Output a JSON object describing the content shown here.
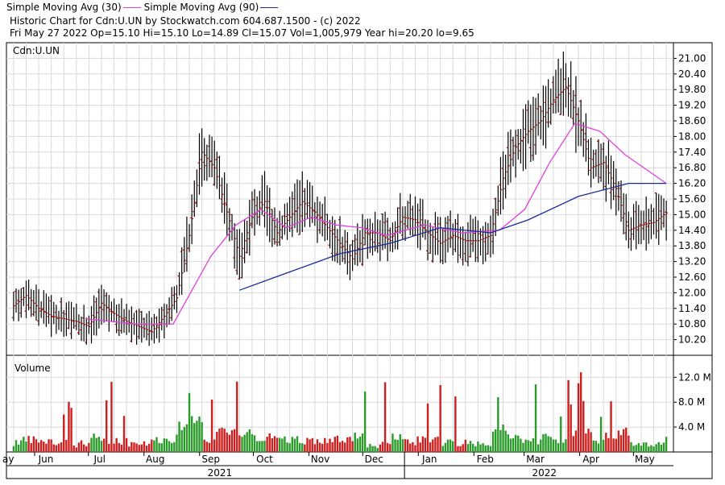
{
  "legend": {
    "ma30_label": "Simple Moving Avg (30)",
    "ma90_label": "Simple Moving Avg (90)"
  },
  "header": {
    "line1": "Historic Chart for Cdn:U.UN by Stockwatch.com 604.687.1500 - (c) 2022",
    "line2": "Fri May 27 2022  Op=15.10  Hi=15.10  Lo=14.89  Cl=15.07  Vol=1,005,979  Year hi=20.20  lo=9.65"
  },
  "colors": {
    "ma30": "#e040e0",
    "ma90": "#1a2a9a",
    "price_bar": "#000000",
    "price_tick": "#b00000",
    "vol_up": "#2a9a2a",
    "vol_down": "#cc2020",
    "grid": "#d8d8d8"
  },
  "chart_data": [
    {
      "type": "ohlc",
      "symbol_label": "Cdn:U.UN",
      "y_ticks": [
        "10.20",
        "10.80",
        "11.40",
        "12.00",
        "12.60",
        "13.20",
        "13.80",
        "14.40",
        "15.00",
        "15.60",
        "16.20",
        "16.80",
        "17.40",
        "18.00",
        "18.60",
        "19.20",
        "19.80",
        "20.40",
        "21.00"
      ],
      "ylim": [
        9.6,
        21.6
      ],
      "last_bar": {
        "date": "2022-05-27",
        "open": 15.1,
        "high": 15.1,
        "low": 14.89,
        "close": 15.07
      },
      "weekly_close_approx": [
        [
          "2021-05-28",
          11.5
        ],
        [
          "2021-06-04",
          11.9
        ],
        [
          "2021-06-11",
          11.4
        ],
        [
          "2021-06-18",
          11.1
        ],
        [
          "2021-06-25",
          11.0
        ],
        [
          "2021-07-02",
          10.9
        ],
        [
          "2021-07-09",
          10.7
        ],
        [
          "2021-07-16",
          11.6
        ],
        [
          "2021-07-23",
          11.2
        ],
        [
          "2021-07-30",
          10.9
        ],
        [
          "2021-08-06",
          10.7
        ],
        [
          "2021-08-13",
          10.5
        ],
        [
          "2021-08-20",
          11.1
        ],
        [
          "2021-08-27",
          11.8
        ],
        [
          "2021-09-03",
          14.2
        ],
        [
          "2021-09-10",
          17.4
        ],
        [
          "2021-09-17",
          16.8
        ],
        [
          "2021-09-24",
          15.1
        ],
        [
          "2021-10-01",
          13.4
        ],
        [
          "2021-10-08",
          14.9
        ],
        [
          "2021-10-15",
          15.5
        ],
        [
          "2021-10-22",
          14.3
        ],
        [
          "2021-10-29",
          14.9
        ],
        [
          "2021-11-05",
          15.5
        ],
        [
          "2021-11-12",
          15.1
        ],
        [
          "2021-11-19",
          14.5
        ],
        [
          "2021-11-26",
          13.9
        ],
        [
          "2021-12-03",
          13.3
        ],
        [
          "2021-12-10",
          14.3
        ],
        [
          "2021-12-17",
          14.3
        ],
        [
          "2021-12-24",
          14.0
        ],
        [
          "2021-12-31",
          14.9
        ],
        [
          "2022-01-07",
          14.8
        ],
        [
          "2022-01-14",
          14.3
        ],
        [
          "2022-01-21",
          13.9
        ],
        [
          "2022-01-28",
          14.2
        ],
        [
          "2022-02-04",
          14.0
        ],
        [
          "2022-02-11",
          14.0
        ],
        [
          "2022-02-18",
          14.2
        ],
        [
          "2022-02-25",
          16.4
        ],
        [
          "2022-03-04",
          17.6
        ],
        [
          "2022-03-11",
          18.2
        ],
        [
          "2022-03-18",
          18.6
        ],
        [
          "2022-03-25",
          19.4
        ],
        [
          "2022-04-01",
          19.9
        ],
        [
          "2022-04-08",
          18.6
        ],
        [
          "2022-04-15",
          16.8
        ],
        [
          "2022-04-22",
          17.0
        ],
        [
          "2022-04-29",
          16.0
        ],
        [
          "2022-05-06",
          14.4
        ],
        [
          "2022-05-13",
          14.6
        ],
        [
          "2022-05-20",
          14.7
        ],
        [
          "2022-05-27",
          15.07
        ]
      ],
      "ma30_approx": [
        [
          "2021-07-07",
          11.0
        ],
        [
          "2021-08-04",
          10.8
        ],
        [
          "2021-08-25",
          10.8
        ],
        [
          "2021-09-15",
          13.4
        ],
        [
          "2021-09-29",
          14.6
        ],
        [
          "2021-10-13",
          15.2
        ],
        [
          "2021-10-27",
          14.5
        ],
        [
          "2021-11-10",
          14.9
        ],
        [
          "2021-11-24",
          14.6
        ],
        [
          "2021-12-08",
          14.5
        ],
        [
          "2021-12-22",
          14.2
        ],
        [
          "2022-01-12",
          14.6
        ],
        [
          "2022-02-02",
          14.3
        ],
        [
          "2022-02-23",
          14.4
        ],
        [
          "2022-03-09",
          15.2
        ],
        [
          "2022-03-23",
          17.0
        ],
        [
          "2022-04-06",
          18.5
        ],
        [
          "2022-04-20",
          18.2
        ],
        [
          "2022-05-04",
          17.3
        ],
        [
          "2022-05-27",
          16.2
        ]
      ],
      "ma90_approx": [
        [
          "2021-10-01",
          12.1
        ],
        [
          "2021-10-29",
          12.8
        ],
        [
          "2021-11-26",
          13.5
        ],
        [
          "2021-12-24",
          13.9
        ],
        [
          "2022-01-21",
          14.5
        ],
        [
          "2022-02-18",
          14.3
        ],
        [
          "2022-03-11",
          14.8
        ],
        [
          "2022-04-08",
          15.7
        ],
        [
          "2022-05-06",
          16.2
        ],
        [
          "2022-05-27",
          16.2
        ]
      ]
    },
    {
      "type": "bar",
      "title": "Volume",
      "y_ticks": [
        "4.0 M",
        "8.0 M",
        "12.0 M"
      ],
      "ylim": [
        0,
        14.5
      ],
      "unit": "M shares",
      "last_volume": 1005979
    }
  ],
  "x_axis": {
    "months": [
      {
        "label": "ay",
        "date": "2021-05-25"
      },
      {
        "label": "Jun",
        "date": "2021-06-15"
      },
      {
        "label": "Jul",
        "date": "2021-07-15"
      },
      {
        "label": "Aug",
        "date": "2021-08-15"
      },
      {
        "label": "Sep",
        "date": "2021-09-15"
      },
      {
        "label": "Oct",
        "date": "2021-10-15"
      },
      {
        "label": "Nov",
        "date": "2021-11-15"
      },
      {
        "label": "Dec",
        "date": "2021-12-15"
      },
      {
        "label": "Jan",
        "date": "2022-01-15"
      },
      {
        "label": "Feb",
        "date": "2022-02-15"
      },
      {
        "label": "Mar",
        "date": "2022-03-15"
      },
      {
        "label": "Apr",
        "date": "2022-04-15"
      },
      {
        "label": "May",
        "date": "2022-05-15"
      }
    ],
    "years": [
      {
        "label": "2021",
        "date": "2021-09-20"
      },
      {
        "label": "2022",
        "date": "2022-03-20"
      }
    ]
  }
}
